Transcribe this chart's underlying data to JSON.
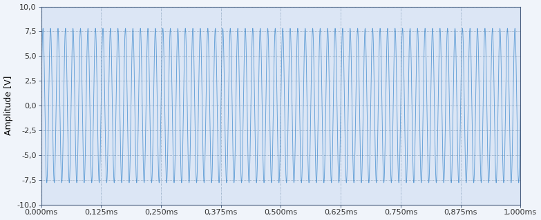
{
  "title": "",
  "ylabel": "Amplitude [V]",
  "xlabel": "",
  "xlim": [
    0,
    0.001
  ],
  "ylim": [
    -10,
    10
  ],
  "yticks": [
    -10,
    -7.5,
    -5,
    -2.5,
    0,
    2.5,
    5,
    7.5,
    10
  ],
  "xticks": [
    0,
    0.000125,
    0.00025,
    0.000375,
    0.0005,
    0.000625,
    0.00075,
    0.000875,
    0.001
  ],
  "xtick_labels": [
    "0,000ms",
    "0,125ms",
    "0,250ms",
    "0,375ms",
    "0,500ms",
    "0,625ms",
    "0,750ms",
    "0,875ms",
    "1,000ms"
  ],
  "ytick_labels": [
    "-10,0",
    "-7,5",
    "-5,0",
    "-2,5",
    "0,0",
    "2,5",
    "5,0",
    "7,5",
    "10,0"
  ],
  "signal_amplitude": 7.8,
  "signal_frequency_hz": 64000,
  "line_color": "#5b9bd5",
  "line_width": 0.6,
  "background_color": "#f0f4fa",
  "plot_bg_color": "#dce6f5",
  "grid_color": "#6080a0",
  "grid_linestyle": ":",
  "grid_linewidth": 0.5,
  "figsize": [
    7.83,
    3.19
  ],
  "dpi": 100,
  "tick_fontsize": 8,
  "ylabel_fontsize": 9
}
